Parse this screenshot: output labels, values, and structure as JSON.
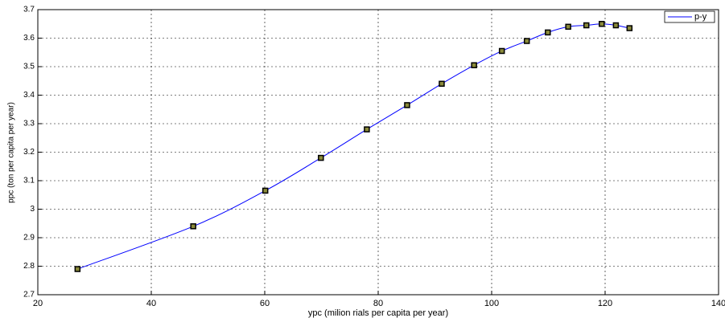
{
  "chart_data": {
    "type": "line",
    "xlabel": "ypc (milion rials per capita per year)",
    "ylabel": "ppc (ton per capita per year)",
    "x": [
      27,
      47.4,
      60.1,
      69.9,
      78,
      85.1,
      91.2,
      96.9,
      101.8,
      106.2,
      109.9,
      113.5,
      116.7,
      119.4,
      121.9,
      124.3
    ],
    "series": [
      {
        "name": "p-y",
        "color": "#0000ff",
        "values": [
          2.79,
          2.94,
          3.065,
          3.18,
          3.28,
          3.365,
          3.44,
          3.505,
          3.555,
          3.59,
          3.62,
          3.64,
          3.645,
          3.65,
          3.645,
          3.635
        ]
      }
    ],
    "xlim": [
      20,
      140
    ],
    "xticks": [
      20,
      40,
      60,
      80,
      100,
      120,
      140
    ],
    "ylim": [
      2.7,
      3.7
    ],
    "yticks": [
      2.7,
      2.8,
      2.9,
      3,
      3.1,
      3.2,
      3.3,
      3.4,
      3.5,
      3.6,
      3.7
    ],
    "grid": true,
    "legend": "upper right"
  }
}
